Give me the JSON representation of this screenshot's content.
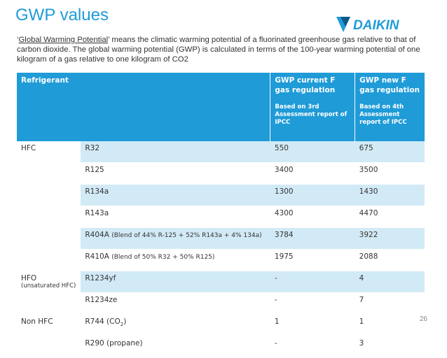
{
  "title": "GWP values",
  "brand": {
    "name": "DAIKIN",
    "color": "#1f9bd7"
  },
  "intro": {
    "quote_open": "‘",
    "term": "Global Warming Potential",
    "text": "’ means the climatic warming potential of a fluorinated greenhouse gas relative to that of carbon dioxide. The global warming potential (GWP) is calculated in terms of the 100-year warming potential of one kilogram of a gas relative to one kilogram of CO2"
  },
  "table": {
    "headers": {
      "refrigerant": "Refrigerant",
      "current": "GWP current F gas regulation",
      "current_note": "Based on 3rd Assessment report of IPCC",
      "new": "GWP new F gas regulation",
      "new_note": "Based on 4th Assessment report of IPCC"
    },
    "groups": {
      "hfc": "HFC",
      "hfo": "HFO",
      "hfo_sub": "(unsaturated HFC)",
      "nonhfc": "Non HFC"
    },
    "rows": [
      {
        "name": "R32",
        "note": "",
        "current": "550",
        "new": "675"
      },
      {
        "name": "R125",
        "note": "",
        "current": "3400",
        "new": "3500"
      },
      {
        "name": "R134a",
        "note": "",
        "current": "1300",
        "new": "1430"
      },
      {
        "name": "R143a",
        "note": "",
        "current": "4300",
        "new": "4470"
      },
      {
        "name": "R404A",
        "note": "(Blend of 44% R-125 + 52% R143a + 4% 134a)",
        "current": "3784",
        "new": "3922"
      },
      {
        "name": "R410A",
        "note": "(Blend of  50% R32 + 50% R125)",
        "current": "1975",
        "new": "2088"
      },
      {
        "name": "R1234yf",
        "note": "",
        "current": " -",
        "new": "4"
      },
      {
        "name": "R1234ze",
        "note": "",
        "current": " -",
        "new": "7"
      },
      {
        "name": "R744  (CO",
        "sub": "2",
        "close": ")",
        "current": "1",
        "new": "1"
      },
      {
        "name": "R290 (propane)",
        "note": "",
        "current": "-",
        "new": "3"
      }
    ]
  },
  "page_number": "26"
}
